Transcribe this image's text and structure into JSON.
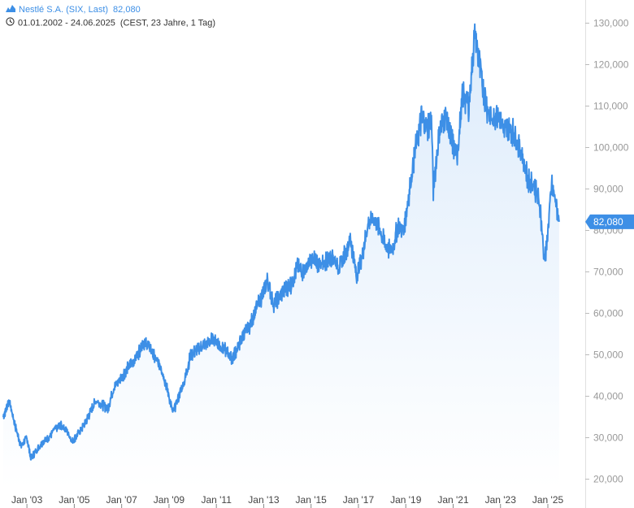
{
  "header": {
    "instrument": "Nestlé S.A. (SIX, Last)",
    "last_value": "82,080",
    "date_range": "01.01.2002 - 24.06.2025",
    "info": "(CEST, 23 Jahre, 1 Tag)"
  },
  "colors": {
    "line": "#3d8fe6",
    "area_top": "#dcebfb",
    "area_bottom": "#ffffff",
    "axis": "#e0e0e0",
    "tag": "#3d8fe6"
  },
  "icons": [
    "mountain-chart-icon",
    "clock-icon"
  ],
  "chart_data": {
    "type": "area",
    "title": "",
    "xlabel": "",
    "ylabel": "",
    "x_ticks": [
      "Jan '03",
      "Jan '05",
      "Jan '07",
      "Jan '09",
      "Jan '11",
      "Jan '13",
      "Jan '15",
      "Jan '17",
      "Jan '19",
      "Jan '21",
      "Jan '23",
      "Jan '25"
    ],
    "x_tick_years": [
      2003,
      2005,
      2007,
      2009,
      2011,
      2013,
      2015,
      2017,
      2019,
      2021,
      2023,
      2025
    ],
    "y_ticks": [
      "20,000",
      "30,000",
      "40,000",
      "50,000",
      "60,000",
      "70,000",
      "80,000",
      "90,000",
      "100,000",
      "110,000",
      "120,000",
      "130,000"
    ],
    "y_tick_values": [
      20,
      30,
      40,
      50,
      60,
      70,
      80,
      90,
      100,
      110,
      120,
      130
    ],
    "xlim": [
      "2002-01-01",
      "2025-06-24"
    ],
    "ylim": [
      17.5,
      135
    ],
    "grid": false,
    "last_value_label": "82,080",
    "series": [
      {
        "values": [
          [
            "2002-01-01",
            35.0
          ],
          [
            "2002-04-01",
            39.0
          ],
          [
            "2002-07-01",
            33.0
          ],
          [
            "2002-10-01",
            28.0
          ],
          [
            "2003-01-01",
            30.0
          ],
          [
            "2003-03-01",
            25.0
          ],
          [
            "2003-06-01",
            27.0
          ],
          [
            "2003-09-01",
            29.0
          ],
          [
            "2003-12-01",
            30.0
          ],
          [
            "2004-03-01",
            32.0
          ],
          [
            "2004-06-01",
            33.0
          ],
          [
            "2004-09-01",
            32.0
          ],
          [
            "2004-12-01",
            29.0
          ],
          [
            "2005-03-01",
            31.0
          ],
          [
            "2005-06-01",
            33.0
          ],
          [
            "2005-09-01",
            36.0
          ],
          [
            "2005-12-01",
            39.0
          ],
          [
            "2006-03-01",
            38.0
          ],
          [
            "2006-06-01",
            37.0
          ],
          [
            "2006-09-01",
            42.0
          ],
          [
            "2006-12-01",
            44.0
          ],
          [
            "2007-03-01",
            46.0
          ],
          [
            "2007-06-01",
            48.0
          ],
          [
            "2007-09-01",
            50.0
          ],
          [
            "2007-12-01",
            53.0
          ],
          [
            "2008-03-01",
            52.0
          ],
          [
            "2008-06-01",
            49.0
          ],
          [
            "2008-09-01",
            47.0
          ],
          [
            "2008-12-01",
            42.0
          ],
          [
            "2009-03-01",
            36.0
          ],
          [
            "2009-06-01",
            40.0
          ],
          [
            "2009-09-01",
            44.0
          ],
          [
            "2009-12-01",
            50.0
          ],
          [
            "2010-03-01",
            51.0
          ],
          [
            "2010-06-01",
            52.0
          ],
          [
            "2010-09-01",
            53.0
          ],
          [
            "2010-12-01",
            54.0
          ],
          [
            "2011-03-01",
            52.0
          ],
          [
            "2011-06-01",
            51.0
          ],
          [
            "2011-09-01",
            49.0
          ],
          [
            "2011-12-01",
            52.0
          ],
          [
            "2012-03-01",
            55.0
          ],
          [
            "2012-06-01",
            57.0
          ],
          [
            "2012-09-01",
            61.0
          ],
          [
            "2012-12-01",
            64.0
          ],
          [
            "2013-03-01",
            68.0
          ],
          [
            "2013-06-01",
            62.0
          ],
          [
            "2013-09-01",
            64.0
          ],
          [
            "2013-12-01",
            66.0
          ],
          [
            "2014-03-01",
            67.0
          ],
          [
            "2014-06-01",
            71.0
          ],
          [
            "2014-09-01",
            70.0
          ],
          [
            "2014-12-01",
            72.0
          ],
          [
            "2015-03-01",
            73.0
          ],
          [
            "2015-06-01",
            71.0
          ],
          [
            "2015-09-01",
            73.0
          ],
          [
            "2015-12-01",
            74.0
          ],
          [
            "2016-03-01",
            71.0
          ],
          [
            "2016-06-01",
            74.0
          ],
          [
            "2016-09-01",
            78.0
          ],
          [
            "2016-12-01",
            69.0
          ],
          [
            "2017-03-01",
            74.0
          ],
          [
            "2017-06-01",
            82.0
          ],
          [
            "2017-09-01",
            83.0
          ],
          [
            "2017-12-01",
            80.0
          ],
          [
            "2018-03-01",
            76.0
          ],
          [
            "2018-06-01",
            75.0
          ],
          [
            "2018-09-01",
            81.0
          ],
          [
            "2018-12-01",
            80.0
          ],
          [
            "2019-03-01",
            90.0
          ],
          [
            "2019-06-01",
            100.0
          ],
          [
            "2019-09-01",
            107.0
          ],
          [
            "2019-12-01",
            105.0
          ],
          [
            "2020-02-01",
            107.0
          ],
          [
            "2020-03-01",
            90.0
          ],
          [
            "2020-06-01",
            104.0
          ],
          [
            "2020-09-01",
            108.0
          ],
          [
            "2020-12-01",
            102.0
          ],
          [
            "2021-03-01",
            98.0
          ],
          [
            "2021-06-01",
            113.0
          ],
          [
            "2021-09-01",
            110.0
          ],
          [
            "2021-12-01",
            128.0
          ],
          [
            "2022-03-01",
            118.0
          ],
          [
            "2022-06-01",
            110.0
          ],
          [
            "2022-09-01",
            106.0
          ],
          [
            "2022-12-01",
            109.0
          ],
          [
            "2023-03-01",
            104.0
          ],
          [
            "2023-06-01",
            105.0
          ],
          [
            "2023-09-01",
            102.0
          ],
          [
            "2023-12-01",
            98.0
          ],
          [
            "2024-03-01",
            92.0
          ],
          [
            "2024-06-01",
            91.0
          ],
          [
            "2024-09-01",
            86.0
          ],
          [
            "2024-11-01",
            74.0
          ],
          [
            "2024-12-01",
            74.0
          ],
          [
            "2025-03-01",
            91.0
          ],
          [
            "2025-05-01",
            87.0
          ],
          [
            "2025-06-24",
            82.08
          ]
        ]
      }
    ]
  }
}
